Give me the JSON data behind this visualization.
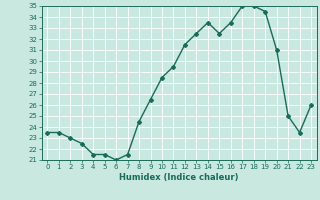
{
  "title": "",
  "xlabel": "Humidex (Indice chaleur)",
  "x": [
    0,
    1,
    2,
    3,
    4,
    5,
    6,
    7,
    8,
    9,
    10,
    11,
    12,
    13,
    14,
    15,
    16,
    17,
    18,
    19,
    20,
    21,
    22,
    23
  ],
  "y": [
    23.5,
    23.5,
    23.0,
    22.5,
    21.5,
    21.5,
    21.0,
    21.5,
    24.5,
    26.5,
    28.5,
    29.5,
    31.5,
    32.5,
    33.5,
    32.5,
    33.5,
    35.0,
    35.0,
    34.5,
    31.0,
    25.0,
    23.5,
    26.0
  ],
  "line_color": "#1a6b5a",
  "bg_color": "#c8e8e0",
  "grid_color": "#ffffff",
  "ylim": [
    21,
    35
  ],
  "yticks": [
    21,
    22,
    23,
    24,
    25,
    26,
    27,
    28,
    29,
    30,
    31,
    32,
    33,
    34,
    35
  ],
  "marker": "D",
  "marker_size": 2.0,
  "line_width": 1.0,
  "tick_fontsize": 5.0,
  "xlabel_fontsize": 6.0
}
